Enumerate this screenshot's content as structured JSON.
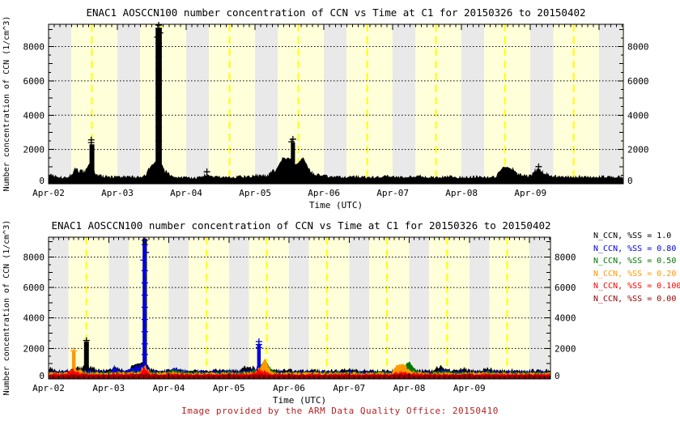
{
  "caption": {
    "text": "Image provided by the ARM Data Quality Office: 20150410",
    "color": "#b22222"
  },
  "styles": {
    "band_gray": "#e9e9e9",
    "band_yellow": "#ffffda",
    "day_line_color": "#ffff00",
    "grid_color": "#000000",
    "frame_color": "#000000",
    "background": "#ffffff"
  },
  "chart_data": [
    {
      "type": "area",
      "title": "ENAC1 AOSCCN100 number concentration of CCN vs Time at C1 for 20150326 to 20150402",
      "xlabel": "Time (UTC)",
      "ylabel": "Number concentration of CCN (1/cm^3)",
      "x_tick_labels": [
        "Apr-02",
        "Apr-03",
        "Apr-04",
        "Apr-05",
        "Apr-06",
        "Apr-07",
        "Apr-08",
        "Apr-09"
      ],
      "x_span_days": 8.35,
      "x_minor_ticks_per_day": 12,
      "dt": 0.1,
      "ylim": [
        0,
        9300
      ],
      "y_ticks": [
        0,
        2000,
        4000,
        6000,
        8000
      ],
      "y_minor_step": 500,
      "grid_values": [
        2000,
        4000,
        6000,
        8000
      ],
      "grid": true,
      "series": [
        {
          "name": "N_CCN",
          "color": "#000000",
          "values": [
            520,
            430,
            390,
            420,
            900,
            650,
            1200,
            520,
            430,
            400,
            410,
            430,
            400,
            420,
            450,
            1100,
            1500,
            700,
            420,
            380,
            360,
            350,
            370,
            600,
            420,
            400,
            380,
            400,
            420,
            400,
            500,
            460,
            520,
            800,
            1500,
            1500,
            1100,
            1600,
            700,
            500,
            450,
            420,
            400,
            380,
            400,
            420,
            400,
            380,
            400,
            420,
            400,
            380,
            400,
            420,
            450,
            400,
            380,
            400,
            420,
            400,
            380,
            400,
            420,
            400,
            380,
            400,
            1000,
            950,
            600,
            500,
            460,
            900,
            650,
            450,
            420,
            400,
            420,
            400,
            430,
            400,
            420,
            400,
            410,
            400
          ],
          "spikes": [
            {
              "t": 1.6,
              "y": 9100,
              "w": 0.09
            },
            {
              "t": 0.63,
              "y": 2300,
              "w": 0.07
            },
            {
              "t": 3.55,
              "y": 2400,
              "w": 0.06
            }
          ]
        }
      ],
      "markers": [
        {
          "color": "#000000",
          "points": [
            [
              0.62,
              2400
            ],
            [
              0.62,
              2560
            ],
            [
              1.6,
              2500
            ],
            [
              1.6,
              3300
            ],
            [
              1.6,
              4100
            ],
            [
              1.6,
              5000
            ],
            [
              1.6,
              5800
            ],
            [
              1.6,
              6600
            ],
            [
              1.6,
              7400
            ],
            [
              1.6,
              8200
            ],
            [
              1.58,
              8550
            ],
            [
              1.62,
              8800
            ],
            [
              1.6,
              9050
            ],
            [
              1.6,
              9250
            ],
            [
              3.53,
              2450
            ],
            [
              3.55,
              2600
            ],
            [
              7.12,
              1000
            ],
            [
              2.3,
              700
            ]
          ]
        }
      ]
    },
    {
      "type": "area",
      "title": "ENAC1 AOSCCN100 number concentration of CCN vs Time at C1 for 20150326 to 20150402",
      "xlabel": "Time (UTC)",
      "ylabel": "Number concentration of CCN (1/cm^3)",
      "x_tick_labels": [
        "Apr-02",
        "Apr-03",
        "Apr-04",
        "Apr-05",
        "Apr-06",
        "Apr-07",
        "Apr-08",
        "Apr-09"
      ],
      "x_span_days": 8.35,
      "x_minor_ticks_per_day": 12,
      "dt": 0.1,
      "ylim": [
        0,
        9300
      ],
      "y_ticks": [
        0,
        2000,
        4000,
        6000,
        8000
      ],
      "y_minor_step": 500,
      "grid_values": [
        2000,
        4000,
        6000,
        8000
      ],
      "grid": true,
      "series": [
        {
          "name": "N_CCN, %SS = 1.0",
          "color": "#000000",
          "values": [
            700,
            560,
            540,
            560,
            580,
            700,
            900,
            800,
            560,
            540,
            560,
            800,
            560,
            540,
            900,
            1000,
            1200,
            600,
            540,
            520,
            560,
            540,
            560,
            580,
            560,
            540,
            520,
            540,
            560,
            540,
            560,
            540,
            560,
            800,
            700,
            600,
            900,
            700,
            560,
            540,
            560,
            540,
            520,
            540,
            560,
            540,
            520,
            540,
            560,
            540,
            600,
            560,
            540,
            560,
            540,
            560,
            540,
            560,
            580,
            560,
            540,
            560,
            540,
            560,
            540,
            800,
            700,
            560,
            540,
            700,
            560,
            540,
            560,
            700,
            560,
            540,
            560,
            540,
            560,
            540,
            560,
            540,
            560,
            540
          ],
          "spikes": [
            {
              "t": 1.6,
              "y": 9200,
              "w": 0.07
            },
            {
              "t": 0.63,
              "y": 2450,
              "w": 0.08
            }
          ]
        },
        {
          "name": "N_CCN, %SS = 0.80",
          "color": "#0000dd",
          "values": [
            500,
            480,
            460,
            480,
            500,
            520,
            600,
            520,
            480,
            460,
            480,
            700,
            520,
            480,
            700,
            800,
            1000,
            520,
            480,
            460,
            520,
            700,
            560,
            480,
            460,
            480,
            460,
            480,
            460,
            480,
            500,
            480,
            520,
            560,
            600,
            800,
            700,
            560,
            480,
            460,
            480,
            460,
            480,
            460,
            480,
            460,
            480,
            460,
            480,
            460,
            500,
            480,
            460,
            480,
            460,
            480,
            460,
            480,
            500,
            480,
            460,
            480,
            460,
            480,
            460,
            520,
            560,
            480,
            460,
            480,
            500,
            480,
            460,
            520,
            480,
            460,
            480,
            460,
            480,
            460,
            480,
            460,
            480,
            460
          ],
          "spikes": [
            {
              "t": 1.6,
              "y": 8800,
              "w": 0.06
            },
            {
              "t": 3.5,
              "y": 2300,
              "w": 0.06
            }
          ]
        },
        {
          "name": "N_CCN, %SS = 0.50",
          "color": "#007700",
          "values": [
            450,
            430,
            420,
            430,
            440,
            460,
            480,
            440,
            430,
            420,
            430,
            460,
            440,
            430,
            460,
            480,
            600,
            440,
            430,
            420,
            460,
            600,
            480,
            430,
            420,
            430,
            420,
            430,
            420,
            430,
            440,
            430,
            440,
            460,
            500,
            700,
            1300,
            600,
            440,
            420,
            430,
            420,
            430,
            420,
            430,
            420,
            430,
            420,
            430,
            420,
            440,
            430,
            420,
            430,
            420,
            430,
            420,
            430,
            440,
            800,
            1150,
            600,
            440,
            430,
            420,
            440,
            460,
            430,
            420,
            430,
            440,
            430,
            420,
            440,
            430,
            420,
            430,
            420,
            430,
            420,
            430,
            420,
            430,
            420
          ],
          "spikes": []
        },
        {
          "name": "N_CCN, %SS = 0.20",
          "color": "#ff9900",
          "values": [
            400,
            390,
            380,
            390,
            600,
            600,
            420,
            390,
            380,
            370,
            380,
            400,
            390,
            380,
            400,
            420,
            800,
            390,
            380,
            370,
            400,
            420,
            390,
            380,
            370,
            380,
            370,
            380,
            370,
            380,
            390,
            380,
            390,
            400,
            450,
            600,
            1300,
            500,
            390,
            370,
            380,
            370,
            380,
            370,
            380,
            370,
            380,
            370,
            380,
            370,
            390,
            380,
            370,
            380,
            370,
            380,
            370,
            380,
            900,
            1000,
            600,
            450,
            390,
            380,
            370,
            390,
            400,
            380,
            370,
            380,
            390,
            380,
            370,
            390,
            380,
            370,
            380,
            370,
            380,
            370,
            380,
            370,
            380,
            370
          ],
          "spikes": [
            {
              "t": 0.42,
              "y": 1800,
              "w": 0.06
            }
          ]
        },
        {
          "name": "N_CCN, %SS = 0.100",
          "color": "#ff0000",
          "values": [
            330,
            320,
            310,
            320,
            600,
            400,
            350,
            320,
            310,
            300,
            310,
            330,
            320,
            310,
            330,
            350,
            700,
            320,
            310,
            300,
            330,
            340,
            320,
            310,
            300,
            310,
            300,
            310,
            300,
            310,
            320,
            310,
            320,
            330,
            360,
            600,
            450,
            350,
            320,
            300,
            310,
            300,
            310,
            300,
            310,
            300,
            310,
            300,
            310,
            300,
            320,
            310,
            300,
            310,
            300,
            310,
            300,
            310,
            400,
            450,
            350,
            330,
            320,
            310,
            300,
            320,
            330,
            310,
            300,
            310,
            320,
            310,
            300,
            320,
            310,
            300,
            310,
            300,
            310,
            300,
            310,
            300,
            310,
            300
          ],
          "spikes": []
        },
        {
          "name": "N_CCN, %SS = 0.00",
          "color": "#990000",
          "values": [
            260,
            255,
            250,
            255,
            300,
            270,
            260,
            255,
            250,
            245,
            250,
            260,
            255,
            250,
            260,
            270,
            350,
            255,
            250,
            245,
            260,
            265,
            255,
            250,
            245,
            250,
            245,
            250,
            245,
            250,
            255,
            250,
            255,
            260,
            270,
            300,
            280,
            260,
            255,
            245,
            250,
            245,
            250,
            245,
            250,
            245,
            250,
            245,
            250,
            245,
            255,
            250,
            245,
            250,
            245,
            250,
            245,
            250,
            280,
            290,
            270,
            260,
            255,
            250,
            245,
            252,
            256,
            250,
            245,
            250,
            255,
            250,
            245,
            252,
            250,
            245,
            250,
            245,
            250,
            245,
            250,
            245,
            250,
            245
          ],
          "spikes": []
        }
      ],
      "markers": [
        {
          "color": "#0000dd",
          "points": [
            [
              1.6,
              1600
            ],
            [
              1.6,
              2300
            ],
            [
              1.6,
              3100
            ],
            [
              1.6,
              3900
            ],
            [
              1.6,
              4700
            ],
            [
              1.6,
              5500
            ],
            [
              1.6,
              6300
            ],
            [
              1.6,
              7100
            ],
            [
              1.58,
              7800
            ],
            [
              1.62,
              8300
            ],
            [
              1.6,
              8800
            ],
            [
              1.6,
              9100
            ],
            [
              3.5,
              2050
            ],
            [
              3.5,
              2250
            ],
            [
              3.5,
              2450
            ]
          ]
        },
        {
          "color": "#000000",
          "points": [
            [
              0.63,
              2520
            ]
          ]
        },
        {
          "color": "#ff9900",
          "points": [
            [
              0.42,
              1850
            ]
          ]
        }
      ],
      "legend": {
        "position": "right"
      }
    }
  ]
}
